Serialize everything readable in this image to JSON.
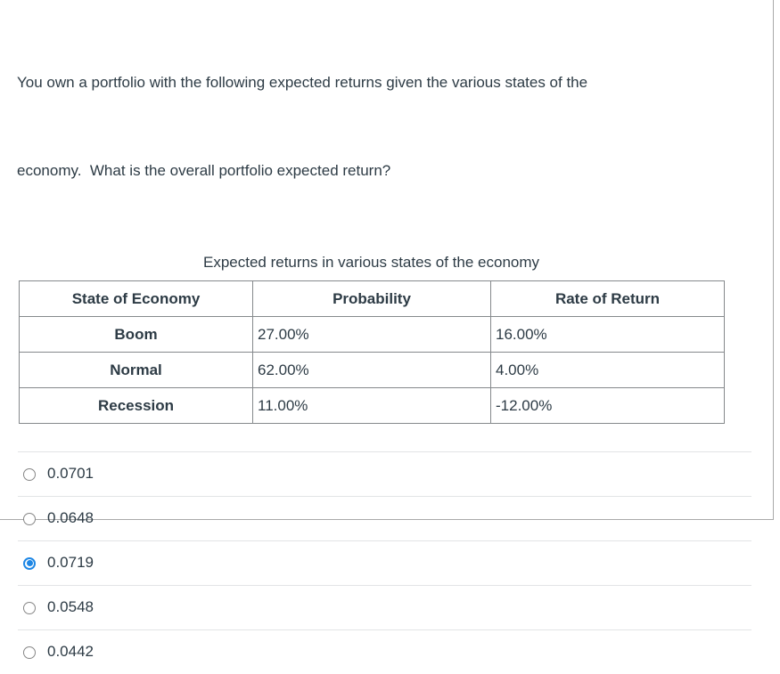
{
  "question": {
    "line1": "You own a portfolio with the following expected returns given the various states of the",
    "line2": "economy.  What is the overall portfolio expected return?"
  },
  "table": {
    "caption": "Expected returns in various states of the economy",
    "headers": [
      "State of Economy",
      "Probability",
      "Rate of Return"
    ],
    "rows": [
      {
        "state": "Boom",
        "probability": "27.00%",
        "rate_of_return": "16.00%"
      },
      {
        "state": "Normal",
        "probability": "62.00%",
        "rate_of_return": "4.00%"
      },
      {
        "state": "Recession",
        "probability": "11.00%",
        "rate_of_return": "-12.00%"
      }
    ]
  },
  "options": [
    {
      "label": "0.0701",
      "selected": false
    },
    {
      "label": "0.0648",
      "selected": false
    },
    {
      "label": "0.0719",
      "selected": true
    },
    {
      "label": "0.0548",
      "selected": false
    },
    {
      "label": "0.0442",
      "selected": false
    }
  ],
  "colors": {
    "accent_blue": "#1E87E5",
    "text": "#2D3B45",
    "table_border": "#85898c",
    "divider": "#e2e4e6"
  }
}
